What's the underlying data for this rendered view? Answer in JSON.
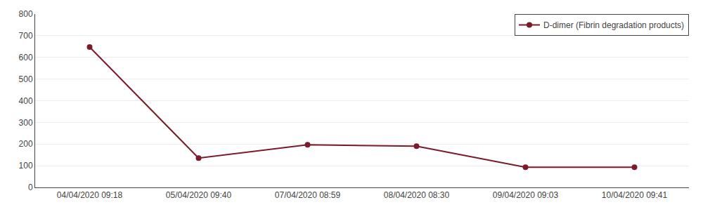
{
  "chart_data": {
    "type": "line",
    "categories": [
      "04/04/2020 09:18",
      "05/04/2020 09:40",
      "07/04/2020 08:59",
      "08/04/2020 08:30",
      "09/04/2020 09:03",
      "10/04/2020 09:41"
    ],
    "series": [
      {
        "name": "D-dimer (Fibrin degradation products)",
        "color": "#7B1A2A",
        "marker": "circle",
        "values": [
          648,
          135,
          197,
          190,
          93,
          93
        ]
      }
    ],
    "ylim": [
      0,
      800
    ],
    "yticks": [
      0,
      100,
      200,
      300,
      400,
      500,
      600,
      700,
      800
    ],
    "grid": true,
    "legend": "upper right"
  }
}
